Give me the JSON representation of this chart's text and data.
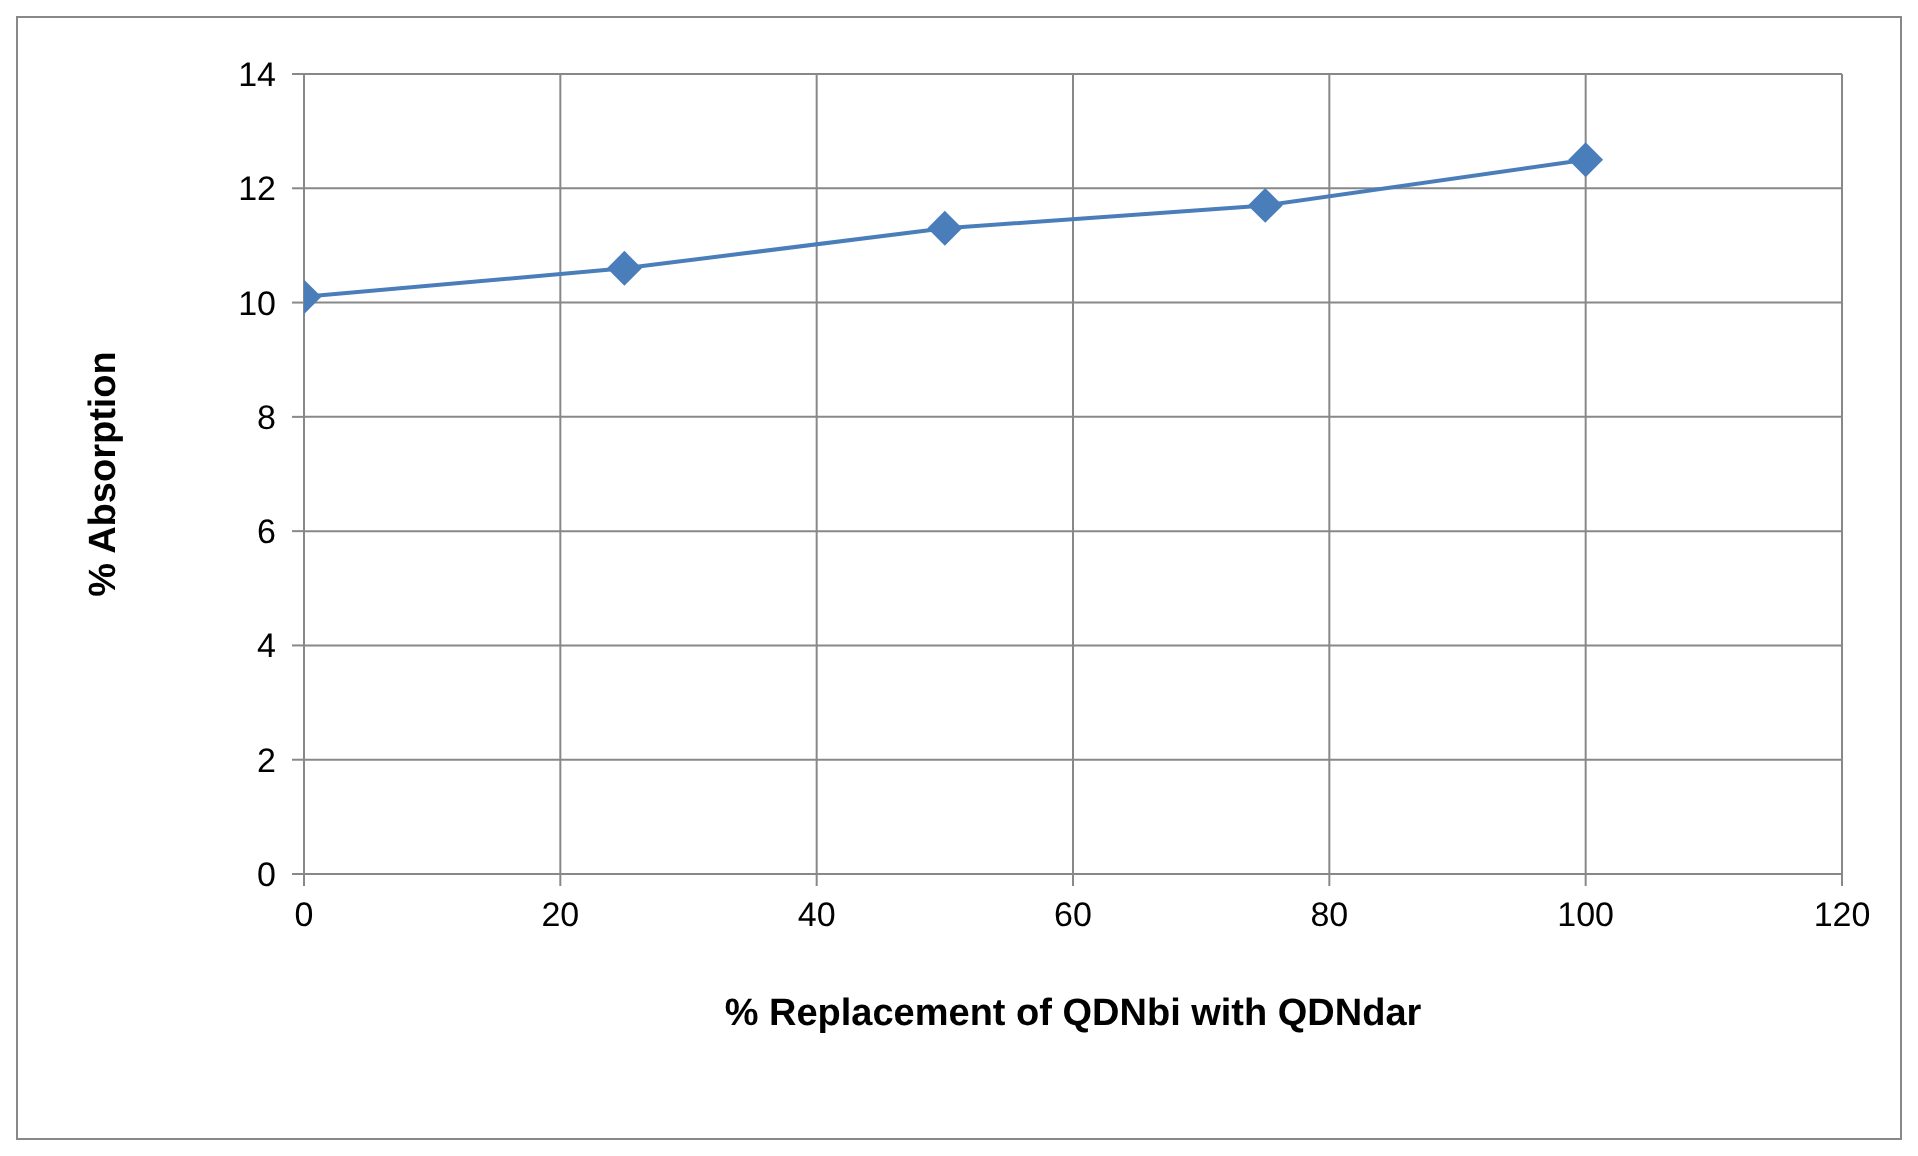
{
  "chart_data": {
    "type": "line",
    "xlabel": "% Replacement of QDNbi with QDNdar",
    "ylabel": "% Absorption",
    "x": [
      0,
      25,
      50,
      75,
      100
    ],
    "series": [
      {
        "color": "#4a7ebb",
        "values": [
          10.1,
          10.6,
          11.3,
          11.7,
          12.5
        ]
      }
    ],
    "xlim": [
      0,
      120
    ],
    "xticks": [
      0,
      20,
      40,
      60,
      80,
      100,
      120
    ],
    "ylim": [
      0,
      14
    ],
    "yticks": [
      0,
      2,
      4,
      6,
      8,
      10,
      12,
      14
    ],
    "grid": true,
    "legend": false,
    "marker": "diamond",
    "line_style": "solid"
  }
}
